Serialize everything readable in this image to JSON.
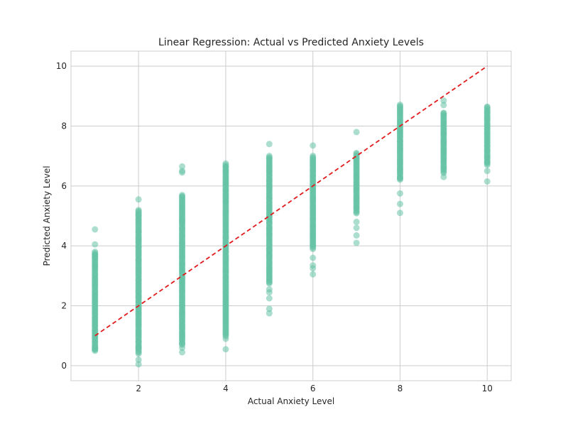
{
  "chart_data": {
    "type": "scatter",
    "title": "Linear Regression: Actual vs Predicted Anxiety Levels",
    "xlabel": "Actual Anxiety Level",
    "ylabel": "Predicted Anxiety Level",
    "xlim": [
      0.45,
      10.55
    ],
    "ylim": [
      -0.5,
      10.5
    ],
    "xticks": [
      2,
      4,
      6,
      8,
      10
    ],
    "yticks": [
      0,
      2,
      4,
      6,
      8,
      10
    ],
    "grid": true,
    "point_color": "#66c2a5",
    "point_alpha": 0.55,
    "reference_line": {
      "x": [
        1,
        10
      ],
      "y": [
        1,
        10
      ],
      "color": "#e31a1c",
      "style": "dashed"
    },
    "columns": [
      {
        "x": 1,
        "range": [
          0.5,
          3.8
        ],
        "outliers": [
          4.55,
          4.05,
          3.6,
          3.7,
          0.6,
          0.55
        ]
      },
      {
        "x": 2,
        "range": [
          0.45,
          5.2
        ],
        "outliers": [
          5.55,
          0.05,
          0.2,
          0.4,
          0.6
        ]
      },
      {
        "x": 3,
        "range": [
          0.7,
          5.7
        ],
        "outliers": [
          6.65,
          6.5,
          6.45,
          0.45,
          0.6
        ]
      },
      {
        "x": 4,
        "range": [
          1.0,
          6.7
        ],
        "outliers": [
          0.9,
          0.55,
          6.75
        ]
      },
      {
        "x": 5,
        "range": [
          2.75,
          7.0
        ],
        "outliers": [
          7.4,
          2.55,
          2.45,
          2.25,
          1.9,
          1.75
        ]
      },
      {
        "x": 6,
        "range": [
          3.9,
          7.0
        ],
        "outliers": [
          7.35,
          3.6,
          3.35,
          3.25,
          3.05
        ]
      },
      {
        "x": 7,
        "range": [
          5.1,
          7.1
        ],
        "outliers": [
          7.8,
          4.8,
          4.6,
          4.35,
          4.1
        ]
      },
      {
        "x": 8,
        "range": [
          6.2,
          8.7
        ],
        "outliers": [
          5.75,
          5.4,
          5.1
        ]
      },
      {
        "x": 9,
        "range": [
          6.45,
          8.45
        ],
        "outliers": [
          8.85,
          8.7,
          6.3
        ]
      },
      {
        "x": 10,
        "range": [
          6.7,
          8.65
        ],
        "outliers": [
          6.5,
          6.15
        ]
      }
    ]
  }
}
